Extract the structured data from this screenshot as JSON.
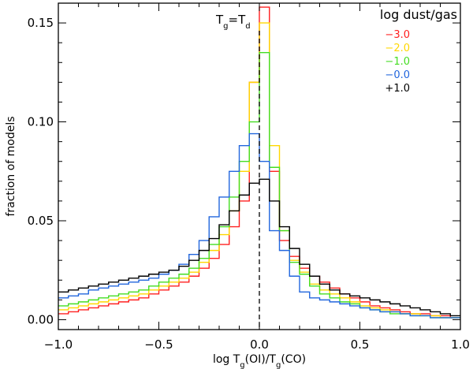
{
  "chart_data": {
    "type": "line",
    "step": true,
    "xlabel": "log T_g(OI)/T_g(CO)",
    "ylabel": "fraction of models",
    "xlim": [
      -1.0,
      1.0
    ],
    "ylim": [
      -0.005,
      0.16
    ],
    "x_ticks": [
      -1.0,
      -0.5,
      0.0,
      0.5,
      1.0
    ],
    "x_tick_labels": [
      "−1.0",
      "−0.5",
      "0.0",
      "0.5",
      "1.0"
    ],
    "y_ticks": [
      0.0,
      0.05,
      0.1,
      0.15
    ],
    "y_tick_labels": [
      "0.00",
      "0.05",
      "0.10",
      "0.15"
    ],
    "grid": false,
    "legend_title": "log dust/gas",
    "legend_position": "top-right",
    "annotation": {
      "text": "T_g=T_d",
      "x": 0.0,
      "vline": true,
      "line_style": "dashed"
    },
    "bin_edges": [
      -1.0,
      -0.95,
      -0.9,
      -0.85,
      -0.8,
      -0.75,
      -0.7,
      -0.65,
      -0.6,
      -0.55,
      -0.5,
      -0.45,
      -0.4,
      -0.35,
      -0.3,
      -0.25,
      -0.2,
      -0.15,
      -0.1,
      -0.05,
      0.0,
      0.05,
      0.1,
      0.15,
      0.2,
      0.25,
      0.3,
      0.35,
      0.4,
      0.45,
      0.5,
      0.55,
      0.6,
      0.65,
      0.7,
      0.75,
      0.8,
      0.85,
      0.9,
      0.95,
      1.0
    ],
    "series": [
      {
        "name": "−3.0",
        "color": "#ff2020",
        "values": [
          0.003,
          0.004,
          0.005,
          0.006,
          0.007,
          0.008,
          0.009,
          0.01,
          0.011,
          0.013,
          0.015,
          0.017,
          0.019,
          0.022,
          0.026,
          0.031,
          0.038,
          0.047,
          0.06,
          0.12,
          0.158,
          0.075,
          0.04,
          0.032,
          0.026,
          0.022,
          0.019,
          0.016,
          0.013,
          0.011,
          0.009,
          0.007,
          0.006,
          0.005,
          0.004,
          0.003,
          0.003,
          0.002,
          0.002,
          0.001
        ]
      },
      {
        "name": "−2.0",
        "color": "#ffd700",
        "values": [
          0.005,
          0.006,
          0.007,
          0.008,
          0.009,
          0.01,
          0.011,
          0.012,
          0.013,
          0.015,
          0.017,
          0.019,
          0.021,
          0.024,
          0.029,
          0.035,
          0.043,
          0.055,
          0.075,
          0.12,
          0.15,
          0.088,
          0.045,
          0.03,
          0.024,
          0.018,
          0.015,
          0.013,
          0.011,
          0.009,
          0.007,
          0.006,
          0.005,
          0.004,
          0.003,
          0.003,
          0.002,
          0.002,
          0.001,
          0.001
        ]
      },
      {
        "name": "−1.0",
        "color": "#44dd22",
        "values": [
          0.007,
          0.008,
          0.009,
          0.01,
          0.011,
          0.012,
          0.013,
          0.014,
          0.015,
          0.017,
          0.019,
          0.021,
          0.023,
          0.026,
          0.031,
          0.038,
          0.047,
          0.062,
          0.08,
          0.1,
          0.135,
          0.077,
          0.045,
          0.029,
          0.023,
          0.017,
          0.013,
          0.011,
          0.009,
          0.008,
          0.006,
          0.005,
          0.004,
          0.003,
          0.003,
          0.002,
          0.002,
          0.001,
          0.001,
          0.001
        ]
      },
      {
        "name": "−0.0",
        "color": "#2266dd",
        "values": [
          0.011,
          0.012,
          0.013,
          0.015,
          0.016,
          0.017,
          0.018,
          0.019,
          0.02,
          0.021,
          0.023,
          0.025,
          0.028,
          0.033,
          0.04,
          0.052,
          0.062,
          0.075,
          0.088,
          0.094,
          0.08,
          0.045,
          0.035,
          0.022,
          0.014,
          0.011,
          0.01,
          0.009,
          0.008,
          0.007,
          0.006,
          0.005,
          0.004,
          0.004,
          0.003,
          0.002,
          0.002,
          0.001,
          0.001,
          0.001
        ]
      },
      {
        "name": "+1.0",
        "color": "#000000",
        "values": [
          0.014,
          0.015,
          0.016,
          0.017,
          0.018,
          0.019,
          0.02,
          0.021,
          0.022,
          0.023,
          0.024,
          0.025,
          0.027,
          0.03,
          0.035,
          0.041,
          0.048,
          0.055,
          0.063,
          0.069,
          0.071,
          0.06,
          0.047,
          0.036,
          0.028,
          0.022,
          0.018,
          0.015,
          0.013,
          0.012,
          0.011,
          0.01,
          0.009,
          0.008,
          0.007,
          0.006,
          0.005,
          0.004,
          0.003,
          0.002
        ]
      }
    ]
  }
}
